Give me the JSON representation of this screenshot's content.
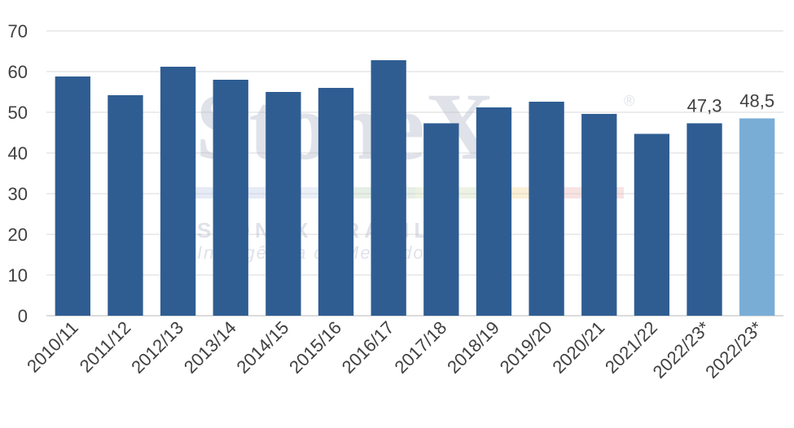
{
  "chart_data": {
    "type": "bar",
    "categories": [
      "2010/11",
      "2011/12",
      "2012/13",
      "2013/14",
      "2014/15",
      "2015/16",
      "2016/17",
      "2017/18",
      "2018/19",
      "2019/20",
      "2020/21",
      "2021/22",
      "2022/23*",
      "2022/23*"
    ],
    "values": [
      58.8,
      54.2,
      61.2,
      58.0,
      55.0,
      56.0,
      62.8,
      47.3,
      51.2,
      52.6,
      49.6,
      44.7,
      47.3,
      48.5
    ],
    "data_labels": [
      "",
      "",
      "",
      "",
      "",
      "",
      "",
      "",
      "",
      "",
      "",
      "",
      "47,3",
      "48,5"
    ],
    "ylim": [
      0,
      70
    ],
    "yticks": [
      0,
      10,
      20,
      30,
      40,
      50,
      60,
      70
    ],
    "grid": true,
    "title": "",
    "xlabel": "",
    "ylabel": ""
  },
  "colors": {
    "bar": "#2f5d92",
    "bar_highlight": "#7aadd6",
    "grid": "#d9d9d9",
    "axis_text": "#404040",
    "watermark": "#c5cad6"
  },
  "watermark": {
    "logo_text": "StoneX",
    "registered": "®",
    "line1": "STONEX BRASIL",
    "line2": "Inteligência de Mercado"
  }
}
